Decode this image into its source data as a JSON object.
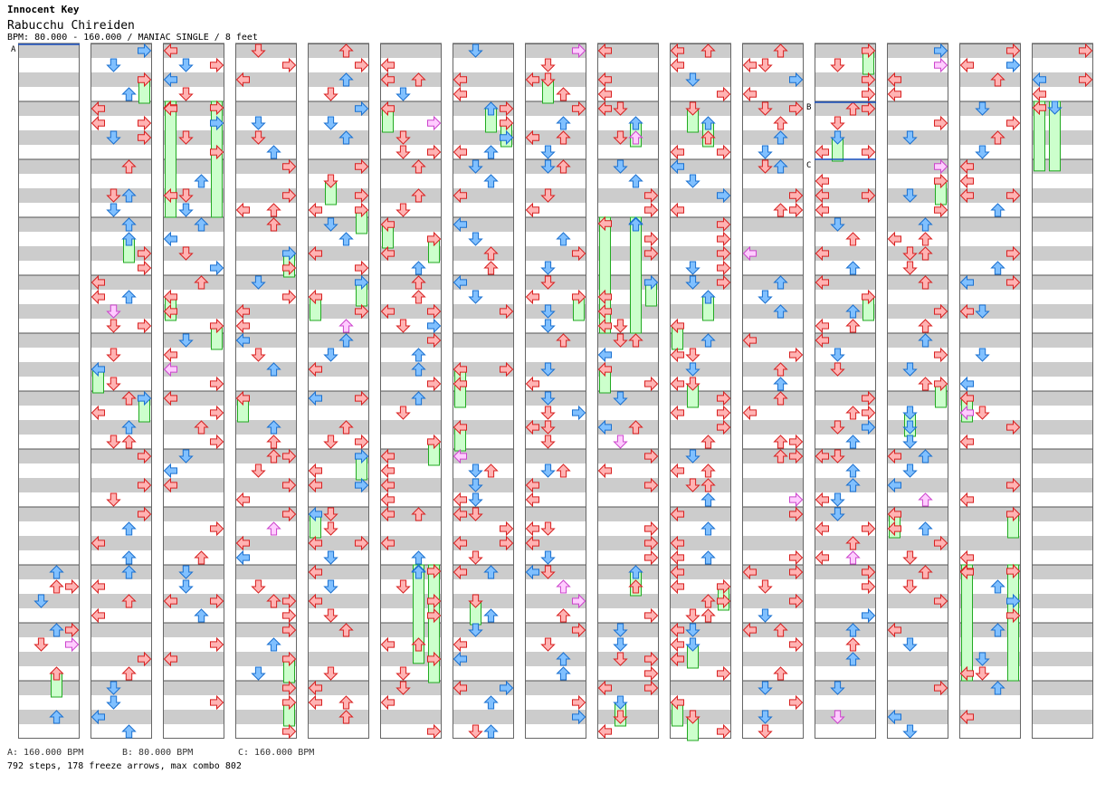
{
  "header": {
    "artist": "Innocent Key",
    "title": "Rabucchu Chireiden",
    "info": "BPM: 80.000 - 160.000 / MANIAC SINGLE / 8 feet"
  },
  "bpm_markers": [
    "A",
    "B",
    "C"
  ],
  "footer": {
    "bpm_a": "A: 160.000 BPM",
    "bpm_b": "B: 80.000 BPM",
    "bpm_c": "C: 160.000 BPM",
    "stats": "792 steps, 178 freeze arrows, max combo 802"
  },
  "colors": {
    "stripe": "#cccccc",
    "border": "#666666",
    "red_arrow": "#ffb3b3",
    "red_edge": "#d82020",
    "blue_arrow": "#80c0ff",
    "blue_edge": "#1a70d0",
    "freeze_fill": "#ccffcc",
    "freeze_edge": "#22aa22",
    "mine_fill": "#ffccff",
    "mine_edge": "#cc44cc"
  },
  "chart_data": {
    "type": "table",
    "columns": 15,
    "measures_per_column": 12,
    "lanes": [
      "left",
      "down",
      "up",
      "right"
    ],
    "empty_columns": [],
    "freeze_spans": [
      {
        "col": 2,
        "lane": 0,
        "start": 1.0,
        "end": 3.0
      },
      {
        "col": 2,
        "lane": 3,
        "start": 1.0,
        "end": 3.0
      },
      {
        "col": 8,
        "lane": 0,
        "start": 3.0,
        "end": 5.0
      },
      {
        "col": 8,
        "lane": 2,
        "start": 3.0,
        "end": 5.0
      },
      {
        "col": 5,
        "lane": 2,
        "start": 9.0,
        "end": 10.7
      },
      {
        "col": 5,
        "lane": 3,
        "start": 9.0,
        "end": 10.7
      },
      {
        "col": 13,
        "lane": 0,
        "start": 9.0,
        "end": 11.0
      },
      {
        "col": 13,
        "lane": 3,
        "start": 9.0,
        "end": 11.0
      },
      {
        "col": 14,
        "lane": 0,
        "start": 1.0,
        "end": 2.2
      },
      {
        "col": 14,
        "lane": 1,
        "start": 1.0,
        "end": 2.2
      }
    ]
  }
}
